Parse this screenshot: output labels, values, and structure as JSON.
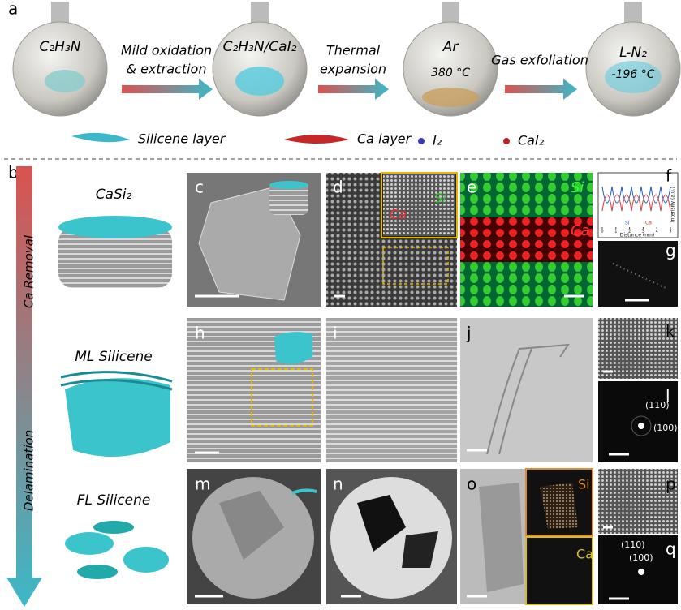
{
  "panel_a": {
    "label": "a",
    "flasks": [
      {
        "label": "C₂H₃N"
      },
      {
        "label": "C₂H₃N/CaI₂"
      },
      {
        "label": "Ar",
        "note": "380 °C"
      },
      {
        "label": "L-N₂",
        "note": "-196 °C"
      }
    ],
    "steps": [
      [
        "Mild oxidation",
        "& extraction"
      ],
      [
        "Thermal",
        "expansion"
      ],
      [
        "Gas exfoliation"
      ]
    ],
    "legend": [
      "Silicene layer",
      "Ca layer",
      "I₂",
      "CaI₂"
    ]
  },
  "panel_b": {
    "label": "b",
    "arrow_labels": [
      "Ca Removal",
      "Delamination"
    ],
    "stages": [
      "CaSi₂",
      "ML Silicene",
      "FL Silicene"
    ]
  },
  "panels": {
    "c": "c",
    "d": "d",
    "d_labels": [
      "Ca",
      "Si"
    ],
    "e": "e",
    "e_labels": [
      "Si",
      "Ca"
    ],
    "f": {
      "label": "f",
      "ylabel": "Intensity (a.u.)",
      "xlabel": "Distance (nm)",
      "xticks": [
        0,
        1,
        2,
        3,
        4,
        5
      ],
      "legend": [
        "Si",
        "Ca"
      ]
    },
    "g": "g",
    "h": "h",
    "i": "i",
    "j": "j",
    "k": "k",
    "l": {
      "label": "l",
      "spots": [
        "(110)",
        "(100)"
      ]
    },
    "m": "m",
    "n": "n",
    "o": {
      "label": "o",
      "maps": [
        "Si",
        "Ca"
      ]
    },
    "p": "p",
    "q": {
      "label": "q",
      "spots": [
        "(110)",
        "(100)"
      ]
    }
  }
}
